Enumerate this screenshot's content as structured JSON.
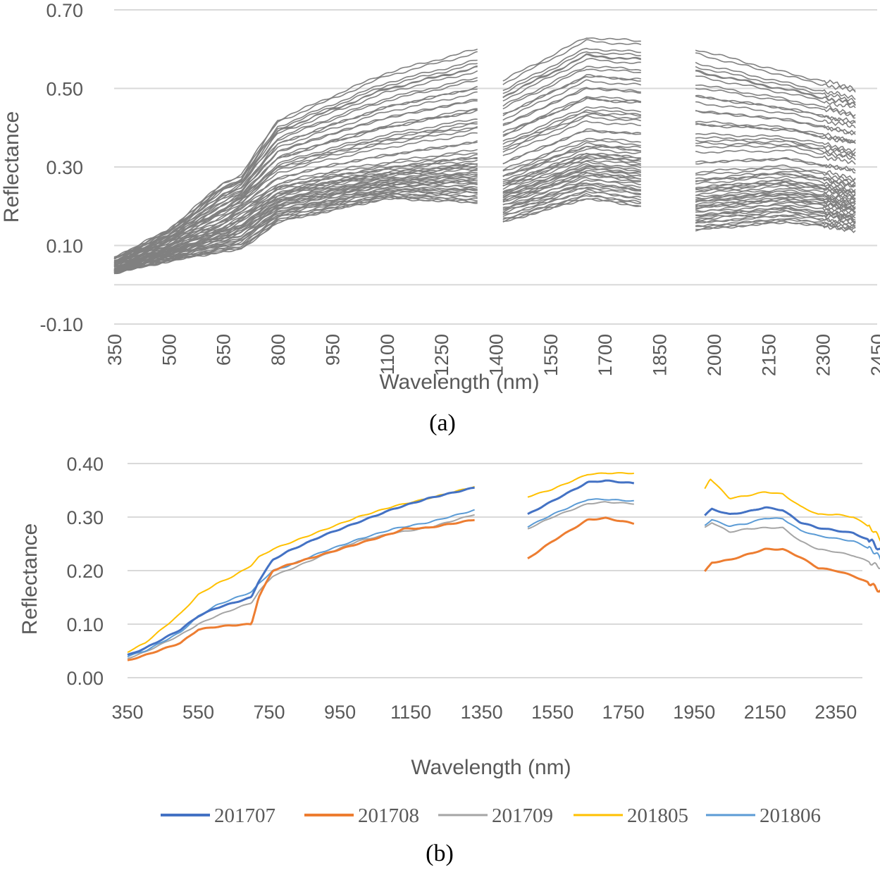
{
  "chart_data": [
    {
      "type": "line",
      "panel_caption": "(a)",
      "title": "",
      "xlabel": "Wavelength (nm)",
      "ylabel": "Reflectance",
      "x_ticks": [
        "350",
        "500",
        "650",
        "800",
        "950",
        "1100",
        "1250",
        "1400",
        "1550",
        "1700",
        "1850",
        "2000",
        "2150",
        "2300",
        "2450"
      ],
      "y_ticks": [
        "-0.10",
        "0.10",
        "0.30",
        "0.50",
        "0.70"
      ],
      "xlim": [
        350,
        2450
      ],
      "ylim": [
        -0.1,
        0.7
      ],
      "grid": true,
      "segments": [
        [
          350,
          1350
        ],
        [
          1420,
          1800
        ],
        [
          1950,
          2390
        ]
      ],
      "line_color": "#808080",
      "series_count": 60,
      "envelope": {
        "min": {
          "x": [
            350,
            500,
            650,
            700,
            800,
            950,
            1100,
            1350,
            1420,
            1650,
            1800,
            1950,
            2200,
            2390
          ],
          "y": [
            0.03,
            0.06,
            0.085,
            0.09,
            0.16,
            0.19,
            0.22,
            0.21,
            0.16,
            0.22,
            0.2,
            0.14,
            0.16,
            0.14
          ]
        },
        "median": {
          "x": [
            350,
            500,
            650,
            700,
            800,
            950,
            1100,
            1350,
            1420,
            1650,
            1800,
            1950,
            2200,
            2390
          ],
          "y": [
            0.04,
            0.1,
            0.16,
            0.19,
            0.25,
            0.28,
            0.3,
            0.33,
            0.28,
            0.36,
            0.35,
            0.27,
            0.29,
            0.26
          ]
        },
        "max": {
          "x": [
            350,
            500,
            650,
            700,
            800,
            950,
            1100,
            1350,
            1420,
            1650,
            1800,
            1950,
            2200,
            2390
          ],
          "y": [
            0.07,
            0.14,
            0.26,
            0.28,
            0.42,
            0.48,
            0.54,
            0.6,
            0.52,
            0.63,
            0.62,
            0.6,
            0.54,
            0.5
          ]
        }
      }
    },
    {
      "type": "line",
      "panel_caption": "(b)",
      "title": "",
      "xlabel": "Wavelength (nm)",
      "ylabel": "Reflectance",
      "x_ticks": [
        "350",
        "550",
        "750",
        "950",
        "1150",
        "1350",
        "1550",
        "1750",
        "1950",
        "2150",
        "2350"
      ],
      "y_ticks": [
        "0.00",
        "0.10",
        "0.20",
        "0.30",
        "0.40"
      ],
      "xlim": [
        350,
        2500
      ],
      "ylim": [
        0.0,
        0.4
      ],
      "grid": true,
      "legend_position": "bottom",
      "segments": [
        [
          350,
          1330
        ],
        [
          1480,
          1780
        ],
        [
          1980,
          2500
        ]
      ],
      "series": [
        {
          "name": "201707",
          "color": "#4472C4",
          "width": 3,
          "x": [
            350,
            400,
            500,
            550,
            600,
            650,
            700,
            720,
            760,
            800,
            900,
            1000,
            1100,
            1200,
            1330,
            1480,
            1550,
            1650,
            1700,
            1780,
            1980,
            2000,
            2050,
            2100,
            2150,
            2200,
            2250,
            2300,
            2350,
            2400,
            2450,
            2480,
            2500
          ],
          "y": [
            0.042,
            0.055,
            0.09,
            0.115,
            0.13,
            0.14,
            0.15,
            0.18,
            0.22,
            0.235,
            0.265,
            0.29,
            0.315,
            0.335,
            0.355,
            0.305,
            0.33,
            0.365,
            0.368,
            0.363,
            0.303,
            0.315,
            0.305,
            0.31,
            0.318,
            0.313,
            0.29,
            0.28,
            0.275,
            0.27,
            0.255,
            0.235,
            0.24
          ]
        },
        {
          "name": "201708",
          "color": "#ED7D31",
          "width": 3,
          "x": [
            350,
            400,
            500,
            550,
            600,
            650,
            700,
            720,
            760,
            800,
            900,
            1000,
            1100,
            1130,
            1200,
            1330,
            1480,
            1550,
            1650,
            1700,
            1780,
            1980,
            2000,
            2050,
            2100,
            2150,
            2200,
            2250,
            2300,
            2350,
            2400,
            2450,
            2480,
            2500
          ],
          "y": [
            0.032,
            0.042,
            0.065,
            0.09,
            0.095,
            0.098,
            0.1,
            0.15,
            0.2,
            0.21,
            0.23,
            0.25,
            0.27,
            0.278,
            0.28,
            0.295,
            0.222,
            0.255,
            0.295,
            0.298,
            0.288,
            0.198,
            0.215,
            0.22,
            0.23,
            0.24,
            0.24,
            0.225,
            0.205,
            0.2,
            0.19,
            0.175,
            0.16,
            0.19
          ]
        },
        {
          "name": "201709",
          "color": "#A5A5A5",
          "width": 2,
          "x": [
            350,
            400,
            500,
            550,
            600,
            650,
            700,
            720,
            760,
            800,
            900,
            1000,
            1100,
            1200,
            1330,
            1480,
            1550,
            1650,
            1700,
            1780,
            1980,
            2000,
            2050,
            2100,
            2150,
            2200,
            2250,
            2300,
            2350,
            2400,
            2450,
            2480,
            2500
          ],
          "y": [
            0.036,
            0.048,
            0.08,
            0.1,
            0.115,
            0.128,
            0.14,
            0.16,
            0.19,
            0.2,
            0.228,
            0.255,
            0.27,
            0.28,
            0.305,
            0.278,
            0.3,
            0.325,
            0.328,
            0.325,
            0.28,
            0.29,
            0.272,
            0.278,
            0.28,
            0.28,
            0.255,
            0.24,
            0.235,
            0.228,
            0.215,
            0.205,
            0.21
          ]
        },
        {
          "name": "201805",
          "color": "#FFC000",
          "width": 2,
          "x": [
            350,
            400,
            500,
            550,
            600,
            650,
            700,
            720,
            760,
            800,
            900,
            1000,
            1100,
            1200,
            1330,
            1480,
            1550,
            1650,
            1700,
            1780,
            1980,
            1995,
            2050,
            2100,
            2150,
            2200,
            2250,
            2300,
            2350,
            2400,
            2450,
            2480,
            2500
          ],
          "y": [
            0.048,
            0.065,
            0.12,
            0.155,
            0.175,
            0.19,
            0.21,
            0.225,
            0.24,
            0.25,
            0.275,
            0.3,
            0.32,
            0.335,
            0.357,
            0.338,
            0.352,
            0.38,
            0.382,
            0.382,
            0.353,
            0.372,
            0.335,
            0.34,
            0.347,
            0.343,
            0.32,
            0.305,
            0.305,
            0.3,
            0.28,
            0.255,
            0.26
          ]
        },
        {
          "name": "201806",
          "color": "#5B9BD5",
          "width": 2,
          "x": [
            350,
            400,
            500,
            550,
            600,
            650,
            700,
            720,
            760,
            800,
            900,
            1000,
            1100,
            1200,
            1330,
            1480,
            1550,
            1650,
            1700,
            1780,
            1980,
            2000,
            2050,
            2100,
            2150,
            2200,
            2250,
            2300,
            2350,
            2400,
            2450,
            2480,
            2500
          ],
          "y": [
            0.04,
            0.05,
            0.085,
            0.115,
            0.135,
            0.148,
            0.16,
            0.175,
            0.2,
            0.208,
            0.235,
            0.258,
            0.278,
            0.29,
            0.313,
            0.282,
            0.305,
            0.333,
            0.333,
            0.33,
            0.285,
            0.295,
            0.283,
            0.288,
            0.298,
            0.297,
            0.275,
            0.265,
            0.26,
            0.255,
            0.24,
            0.22,
            0.235
          ]
        }
      ]
    }
  ]
}
